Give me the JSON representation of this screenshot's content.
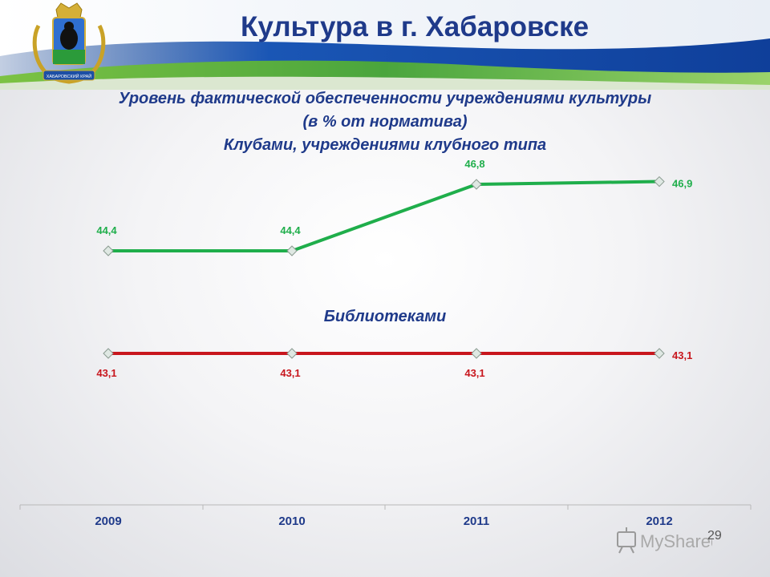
{
  "slide": {
    "title": "Культура в г. Хабаровске",
    "subtitle_line1": "Уровень фактической обеспеченности учреждениями культуры",
    "subtitle_line2": "(в % от норматива)",
    "subtitle_line3": "Клубами, учреждениями клубного типа",
    "series2_heading": "Библиотеками",
    "page_number": "29",
    "crest_caption": "ХАБАРОВСКИЙ КРАЙ",
    "watermark_text": "MyShared"
  },
  "chart_data": {
    "type": "line",
    "x": [
      "2009",
      "2010",
      "2011",
      "2012"
    ],
    "series": [
      {
        "name": "Клубами, учреждениями клубного типа",
        "values": [
          44.4,
          44.4,
          46.8,
          46.9
        ],
        "labels": [
          "44,4",
          "44,4",
          "46,8",
          "46,9"
        ],
        "color": "#1fae4b"
      },
      {
        "name": "Библиотеками",
        "values": [
          43.1,
          43.1,
          43.1,
          43.1
        ],
        "labels": [
          "43,1",
          "43,1",
          "43,1",
          "43,1"
        ],
        "color": "#c8161d"
      }
    ]
  },
  "colors": {
    "title": "#1f3a8a",
    "axis": "#b8b8b8",
    "tick_label": "#1f3a8a"
  }
}
